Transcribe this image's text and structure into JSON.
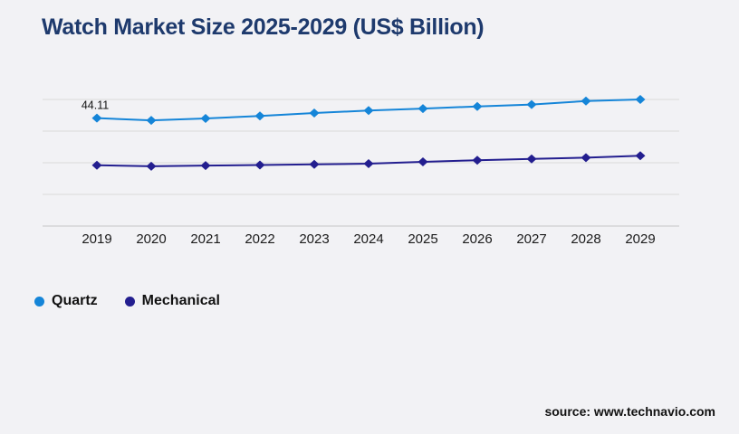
{
  "header": {
    "title": "Watch Market Size 2025-2029 (US$ Billion)"
  },
  "colors": {
    "title": "#1e3a6d",
    "background": "#f2f2f5",
    "gridline": "#d9d9d9",
    "axis_line": "#c6c6c6",
    "axis_label_text": "#1a1a1a",
    "quartz": "#1585d8",
    "mechanical": "#231e8f"
  },
  "chart_data": {
    "type": "line",
    "title": "Watch Market Size 2025-2029 (US$ Billion)",
    "categories": [
      "2019",
      "2020",
      "2021",
      "2022",
      "2023",
      "2024",
      "2025",
      "2026",
      "2027",
      "2028",
      "2029"
    ],
    "series": [
      {
        "name": "Quartz",
        "color": "#1585d8",
        "values": [
          44.11,
          43.4,
          44.0,
          44.8,
          45.7,
          46.5,
          47.1,
          47.8,
          48.4,
          49.5,
          50.0
        ],
        "first_point_label": "44.11"
      },
      {
        "name": "Mechanical",
        "color": "#231e8f",
        "values": [
          29.2,
          28.9,
          29.1,
          29.3,
          29.5,
          29.7,
          30.3,
          30.8,
          31.2,
          31.6,
          32.2
        ]
      }
    ],
    "xlabel": "",
    "ylabel": "",
    "ylim": [
      10,
      55
    ],
    "y_gridlines": [
      50,
      40,
      30,
      20,
      10
    ],
    "y_axis_labels_visible": false,
    "grid": "horizontal gridlines only",
    "marker": "diamond",
    "legend_position": "bottom-left"
  },
  "footer": {
    "source": "source: www.technavio.com"
  }
}
